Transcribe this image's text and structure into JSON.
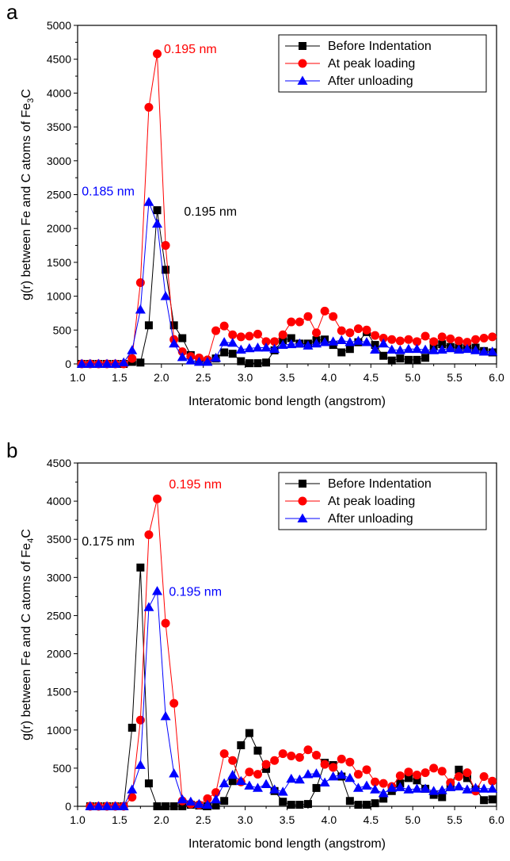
{
  "chart_data": [
    {
      "panel": "a",
      "type": "line",
      "ylabel_prefix": "g(r) between Fe and C atoms of Fe",
      "ylabel_sub": "3",
      "ylabel_suffix": "C",
      "xlabel": "Interatomic bond length (angstrom)",
      "xlim": [
        1.0,
        6.0
      ],
      "ylim": [
        0,
        5000
      ],
      "xticks": [
        "1.0",
        "1.5",
        "2.0",
        "2.5",
        "3.0",
        "3.5",
        "4.0",
        "4.5",
        "5.0",
        "5.5",
        "6.0"
      ],
      "yticks": [
        "0",
        "500",
        "1000",
        "1500",
        "2000",
        "2500",
        "3000",
        "3500",
        "4000",
        "4500",
        "5000"
      ],
      "legend_position": "top-right",
      "series": [
        {
          "name": "Before Indentation",
          "color": "#000000",
          "marker": "square",
          "x": [
            1.05,
            1.15,
            1.25,
            1.35,
            1.45,
            1.55,
            1.65,
            1.75,
            1.85,
            1.95,
            2.05,
            2.15,
            2.25,
            2.35,
            2.45,
            2.55,
            2.65,
            2.75,
            2.85,
            2.95,
            3.05,
            3.15,
            3.25,
            3.35,
            3.45,
            3.55,
            3.65,
            3.75,
            3.85,
            3.95,
            4.05,
            4.15,
            4.25,
            4.35,
            4.45,
            4.55,
            4.65,
            4.75,
            4.85,
            4.95,
            5.05,
            5.15,
            5.25,
            5.35,
            5.45,
            5.55,
            5.65,
            5.75,
            5.85,
            5.95
          ],
          "y": [
            0,
            0,
            0,
            0,
            0,
            0,
            30,
            20,
            570,
            2270,
            1390,
            570,
            380,
            130,
            60,
            40,
            80,
            170,
            150,
            40,
            10,
            10,
            20,
            200,
            350,
            380,
            300,
            300,
            350,
            360,
            280,
            170,
            220,
            320,
            470,
            280,
            120,
            50,
            80,
            60,
            60,
            90,
            260,
            290,
            250,
            240,
            230,
            240,
            190,
            170
          ]
        },
        {
          "name": "At peak loading",
          "color": "#ff0000",
          "marker": "circle",
          "x": [
            1.05,
            1.15,
            1.25,
            1.35,
            1.45,
            1.55,
            1.65,
            1.75,
            1.85,
            1.95,
            2.05,
            2.15,
            2.25,
            2.35,
            2.45,
            2.55,
            2.65,
            2.75,
            2.85,
            2.95,
            3.05,
            3.15,
            3.25,
            3.35,
            3.45,
            3.55,
            3.65,
            3.75,
            3.85,
            3.95,
            4.05,
            4.15,
            4.25,
            4.35,
            4.45,
            4.55,
            4.65,
            4.75,
            4.85,
            4.95,
            5.05,
            5.15,
            5.25,
            5.35,
            5.45,
            5.55,
            5.65,
            5.75,
            5.85,
            5.95
          ],
          "y": [
            0,
            0,
            0,
            0,
            0,
            0,
            80,
            1200,
            3790,
            4580,
            1750,
            360,
            180,
            110,
            90,
            60,
            490,
            560,
            430,
            400,
            410,
            440,
            330,
            330,
            430,
            620,
            620,
            700,
            460,
            780,
            700,
            490,
            460,
            520,
            500,
            420,
            380,
            360,
            340,
            360,
            330,
            410,
            330,
            400,
            370,
            340,
            320,
            360,
            380,
            400
          ]
        },
        {
          "name": "After unloading",
          "color": "#0000ff",
          "marker": "triangle",
          "x": [
            1.05,
            1.15,
            1.25,
            1.35,
            1.45,
            1.55,
            1.65,
            1.75,
            1.85,
            1.95,
            2.05,
            2.15,
            2.25,
            2.35,
            2.45,
            2.55,
            2.65,
            2.75,
            2.85,
            2.95,
            3.05,
            3.15,
            3.25,
            3.35,
            3.45,
            3.55,
            3.65,
            3.75,
            3.85,
            3.95,
            4.05,
            4.15,
            4.25,
            4.35,
            4.45,
            4.55,
            4.65,
            4.75,
            4.85,
            4.95,
            5.05,
            5.15,
            5.25,
            5.35,
            5.45,
            5.55,
            5.65,
            5.75,
            5.85,
            5.95
          ],
          "y": [
            0,
            0,
            0,
            0,
            0,
            20,
            200,
            800,
            2390,
            2070,
            1000,
            300,
            100,
            50,
            30,
            30,
            90,
            320,
            310,
            210,
            230,
            240,
            240,
            220,
            280,
            290,
            300,
            270,
            300,
            320,
            330,
            350,
            320,
            340,
            320,
            210,
            300,
            210,
            200,
            220,
            220,
            210,
            200,
            210,
            230,
            210,
            220,
            200,
            180,
            180
          ]
        }
      ],
      "annotations": [
        {
          "text": "0.195 nm",
          "color": "#ff0000",
          "x": 2.03,
          "y": 4590,
          "anchor": "start"
        },
        {
          "text": "0.185 nm",
          "color": "#0000ff",
          "x": 1.05,
          "y": 2490,
          "anchor": "start"
        },
        {
          "text": "0.195 nm",
          "color": "#000000",
          "x": 2.27,
          "y": 2190,
          "anchor": "start"
        }
      ]
    },
    {
      "panel": "b",
      "type": "line",
      "ylabel_prefix": "g(r) between Fe and C atoms of Fe",
      "ylabel_sub": "4",
      "ylabel_suffix": "C",
      "xlabel": "Interatomic bond length (angstrom)",
      "xlim": [
        1.0,
        6.0
      ],
      "ylim": [
        0,
        4500
      ],
      "xticks": [
        "1.0",
        "1.5",
        "2.0",
        "2.5",
        "3.0",
        "3.5",
        "4.0",
        "4.5",
        "5.0",
        "5.5",
        "6.0"
      ],
      "yticks": [
        "0",
        "500",
        "1000",
        "1500",
        "2000",
        "2500",
        "3000",
        "3500",
        "4000",
        "4500"
      ],
      "legend_position": "top-right",
      "series": [
        {
          "name": "Before Indentation",
          "color": "#000000",
          "marker": "square",
          "x": [
            1.15,
            1.25,
            1.35,
            1.45,
            1.55,
            1.65,
            1.75,
            1.85,
            1.95,
            2.05,
            2.15,
            2.25,
            2.35,
            2.45,
            2.55,
            2.65,
            2.75,
            2.85,
            2.95,
            3.05,
            3.15,
            3.25,
            3.35,
            3.45,
            3.55,
            3.65,
            3.75,
            3.85,
            3.95,
            4.05,
            4.15,
            4.25,
            4.35,
            4.45,
            4.55,
            4.65,
            4.75,
            4.85,
            4.95,
            5.05,
            5.15,
            5.25,
            5.35,
            5.45,
            5.55,
            5.65,
            5.75,
            5.85,
            5.95
          ],
          "y": [
            0,
            0,
            0,
            0,
            0,
            1030,
            3130,
            300,
            0,
            0,
            0,
            0,
            20,
            10,
            0,
            10,
            70,
            330,
            800,
            960,
            730,
            490,
            200,
            60,
            20,
            20,
            30,
            240,
            570,
            540,
            390,
            70,
            20,
            20,
            40,
            100,
            200,
            300,
            370,
            340,
            230,
            150,
            120,
            280,
            480,
            370,
            220,
            80,
            90
          ]
        },
        {
          "name": "At peak loading",
          "color": "#ff0000",
          "marker": "circle",
          "x": [
            1.15,
            1.25,
            1.35,
            1.45,
            1.55,
            1.65,
            1.75,
            1.85,
            1.95,
            2.05,
            2.15,
            2.25,
            2.35,
            2.45,
            2.55,
            2.65,
            2.75,
            2.85,
            2.95,
            3.05,
            3.15,
            3.25,
            3.35,
            3.45,
            3.55,
            3.65,
            3.75,
            3.85,
            3.95,
            4.05,
            4.15,
            4.25,
            4.35,
            4.45,
            4.55,
            4.65,
            4.75,
            4.85,
            4.95,
            5.05,
            5.15,
            5.25,
            5.35,
            5.45,
            5.55,
            5.65,
            5.75,
            5.85,
            5.95
          ],
          "y": [
            0,
            0,
            0,
            0,
            0,
            120,
            1130,
            3560,
            4030,
            2400,
            1350,
            70,
            30,
            20,
            100,
            180,
            690,
            600,
            320,
            450,
            420,
            550,
            600,
            690,
            660,
            640,
            740,
            670,
            550,
            510,
            620,
            580,
            420,
            480,
            320,
            300,
            260,
            400,
            450,
            410,
            440,
            500,
            460,
            310,
            390,
            440,
            200,
            390,
            330
          ]
        },
        {
          "name": "After unloading",
          "color": "#0000ff",
          "marker": "triangle",
          "x": [
            1.15,
            1.25,
            1.35,
            1.45,
            1.55,
            1.65,
            1.75,
            1.85,
            1.95,
            2.05,
            2.15,
            2.25,
            2.35,
            2.45,
            2.55,
            2.65,
            2.75,
            2.85,
            2.95,
            3.05,
            3.15,
            3.25,
            3.35,
            3.45,
            3.55,
            3.65,
            3.75,
            3.85,
            3.95,
            4.05,
            4.15,
            4.25,
            4.35,
            4.45,
            4.55,
            4.65,
            4.75,
            4.85,
            4.95,
            5.05,
            5.15,
            5.25,
            5.35,
            5.45,
            5.55,
            5.65,
            5.75,
            5.85,
            5.95
          ],
          "y": [
            0,
            0,
            0,
            0,
            0,
            220,
            540,
            2610,
            2820,
            1180,
            430,
            90,
            60,
            30,
            20,
            90,
            300,
            410,
            330,
            270,
            240,
            290,
            220,
            190,
            360,
            350,
            420,
            430,
            310,
            390,
            410,
            370,
            240,
            270,
            220,
            170,
            240,
            250,
            220,
            230,
            230,
            200,
            210,
            250,
            260,
            220,
            240,
            230,
            230
          ]
        }
      ],
      "annotations": [
        {
          "text": "0.195 nm",
          "color": "#ff0000",
          "x": 2.09,
          "y": 4170,
          "anchor": "start"
        },
        {
          "text": "0.175 nm",
          "color": "#000000",
          "x": 1.05,
          "y": 3420,
          "anchor": "start"
        },
        {
          "text": "0.195 nm",
          "color": "#0000ff",
          "x": 2.09,
          "y": 2760,
          "anchor": "start"
        }
      ]
    }
  ]
}
